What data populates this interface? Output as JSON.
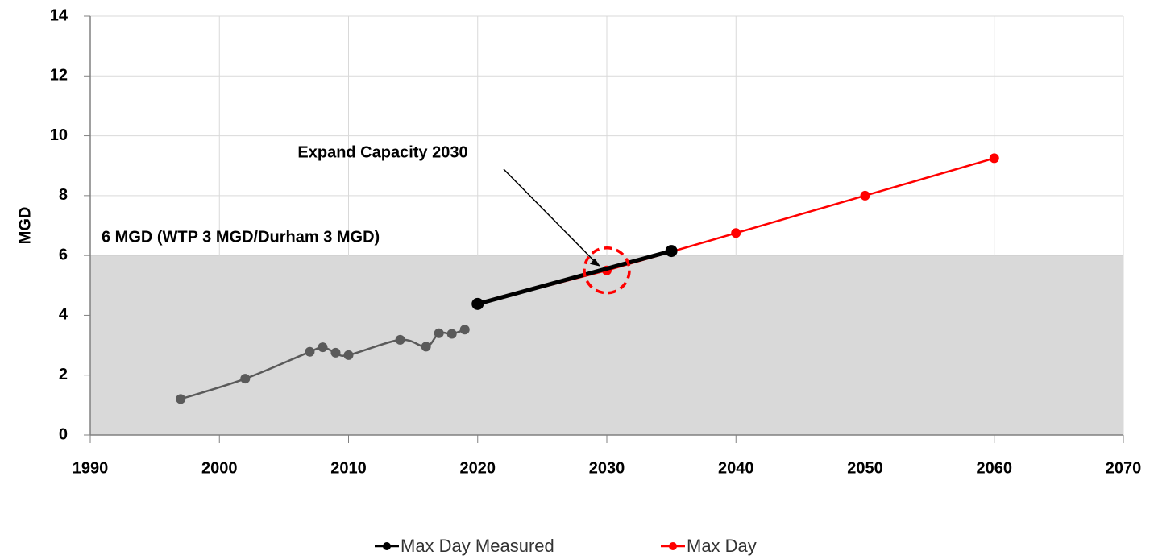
{
  "chart_data": {
    "type": "line",
    "y_label": "MGD",
    "xlim": [
      1990,
      2070
    ],
    "xticks": [
      1990,
      2000,
      2010,
      2020,
      2030,
      2040,
      2050,
      2060,
      2070
    ],
    "ylim": [
      0,
      14
    ],
    "yticks": [
      0,
      2,
      4,
      6,
      8,
      10,
      12,
      14
    ],
    "grid": true,
    "series": [
      {
        "name": "Max Day Measured",
        "color": "#5a5a5a",
        "x": [
          1997,
          2002,
          2007,
          2008,
          2009,
          2010,
          2014,
          2016,
          2017,
          2018,
          2019
        ],
        "values": [
          1.2,
          1.88,
          2.78,
          2.93,
          2.75,
          2.67,
          3.18,
          2.95,
          3.4,
          3.38,
          3.52
        ]
      },
      {
        "name": "Max Day",
        "color": "#ff0000",
        "x": [
          2020,
          2030,
          2040,
          2050,
          2060
        ],
        "values": [
          4.38,
          5.5,
          6.75,
          8.0,
          9.25
        ]
      },
      {
        "color": "#000000",
        "x": [
          2020,
          2035
        ],
        "values": [
          4.38,
          6.15
        ]
      }
    ],
    "capacity": {
      "value": 6,
      "label": "6 MGD (WTP 3 MGD/Durham 3 MGD)",
      "color": "#d9d9d9"
    },
    "annotation": {
      "text": "Expand Capacity 2030",
      "x": 2030,
      "y": 5.5,
      "color": "#ff0000"
    }
  }
}
